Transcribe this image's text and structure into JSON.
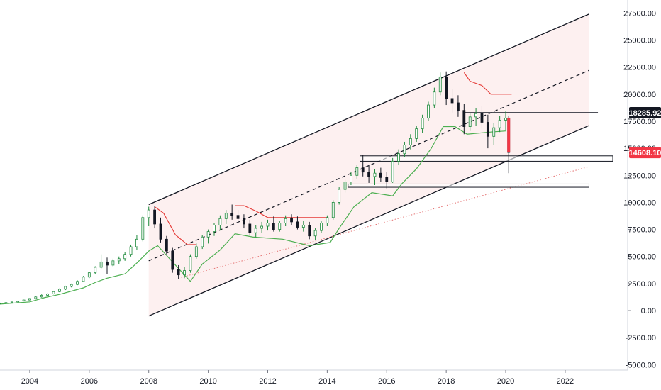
{
  "chart_data": {
    "type": "candlestick",
    "x_ticks": [
      "2004",
      "2006",
      "2008",
      "2010",
      "2012",
      "2014",
      "2016",
      "2018",
      "2020",
      "2022"
    ],
    "y_ticks": [
      "27500.00",
      "25000.00",
      "22500.00",
      "20000.00",
      "17500.00",
      "15000.00",
      "12500.00",
      "10000.00",
      "7500.00",
      "5000.00",
      "2500.00",
      "0.00",
      "-2500.00",
      "-5000.00"
    ],
    "ylim": [
      -5500,
      28700
    ],
    "xlim": [
      2003.0,
      2024.1
    ],
    "grid": false,
    "price_tags": [
      {
        "label": "18285.92",
        "value": 18285.92,
        "color": "#131722"
      },
      {
        "label": "14608.10",
        "value": 14608.1,
        "color": "#f23645"
      }
    ],
    "channel": {
      "upper": [
        [
          2008.0,
          9800
        ],
        [
          2022.8,
          27400
        ]
      ],
      "middle": [
        [
          2008.0,
          4600
        ],
        [
          2022.8,
          22200
        ]
      ],
      "lower": [
        [
          2008.0,
          -500
        ],
        [
          2022.8,
          17100
        ]
      ]
    },
    "dotted_trend": [
      [
        2009.0,
        3000
      ],
      [
        2022.8,
        13300
      ]
    ],
    "resistance_line": {
      "value": 18285.92,
      "from": 2018.6,
      "to": 2023.1
    },
    "zones": [
      {
        "from": 2015.1,
        "to": 2023.6,
        "low": 13800,
        "high": 14300
      },
      {
        "from": 2014.7,
        "to": 2022.8,
        "low": 11400,
        "high": 11700
      }
    ],
    "candles": [
      [
        2003.0,
        680,
        720,
        620,
        700
      ],
      [
        2003.2,
        700,
        760,
        680,
        740
      ],
      [
        2003.4,
        740,
        820,
        720,
        800
      ],
      [
        2003.6,
        800,
        900,
        780,
        880
      ],
      [
        2003.8,
        880,
        1000,
        860,
        980
      ],
      [
        2004.0,
        980,
        1150,
        940,
        1120
      ],
      [
        2004.2,
        1120,
        1300,
        1080,
        1260
      ],
      [
        2004.4,
        1260,
        1500,
        1200,
        1420
      ],
      [
        2004.6,
        1420,
        1600,
        1360,
        1540
      ],
      [
        2004.8,
        1540,
        1800,
        1500,
        1760
      ],
      [
        2005.0,
        1760,
        2050,
        1700,
        1980
      ],
      [
        2005.2,
        1980,
        2300,
        1900,
        2240
      ],
      [
        2005.4,
        2240,
        2500,
        2150,
        2420
      ],
      [
        2005.6,
        2420,
        2800,
        2350,
        2700
      ],
      [
        2005.8,
        2700,
        3200,
        2650,
        3100
      ],
      [
        2006.0,
        3100,
        3600,
        3000,
        3500
      ],
      [
        2006.2,
        3500,
        4100,
        3400,
        4000
      ],
      [
        2006.4,
        4000,
        5200,
        3800,
        4500
      ],
      [
        2006.6,
        4500,
        4900,
        3400,
        4200
      ],
      [
        2006.8,
        4200,
        4800,
        4000,
        4600
      ],
      [
        2007.0,
        4600,
        5000,
        4300,
        4800
      ],
      [
        2007.2,
        4800,
        5400,
        4600,
        5200
      ],
      [
        2007.4,
        5200,
        6100,
        5000,
        5900
      ],
      [
        2007.6,
        5900,
        7000,
        5600,
        6600
      ],
      [
        2007.8,
        6600,
        8800,
        6400,
        8600
      ],
      [
        2008.0,
        8600,
        9600,
        7800,
        9300
      ],
      [
        2008.2,
        9300,
        9700,
        7600,
        8000
      ],
      [
        2008.4,
        8000,
        8600,
        6300,
        6600
      ],
      [
        2008.6,
        6600,
        6900,
        5200,
        5500
      ],
      [
        2008.8,
        5500,
        5800,
        3500,
        3800
      ],
      [
        2009.0,
        3800,
        4200,
        2950,
        3300
      ],
      [
        2009.2,
        3300,
        4000,
        3000,
        3700
      ],
      [
        2009.4,
        3700,
        5200,
        3500,
        5000
      ],
      [
        2009.6,
        5000,
        6200,
        4800,
        5900
      ],
      [
        2009.8,
        5900,
        7000,
        5700,
        6800
      ],
      [
        2010.0,
        6800,
        7500,
        6200,
        7300
      ],
      [
        2010.2,
        7300,
        8100,
        6900,
        7900
      ],
      [
        2010.4,
        7900,
        8800,
        7400,
        8500
      ],
      [
        2010.6,
        8500,
        9300,
        8000,
        9000
      ],
      [
        2010.8,
        9000,
        9800,
        8400,
        8800
      ],
      [
        2011.0,
        8800,
        9300,
        8100,
        8500
      ],
      [
        2011.2,
        8500,
        8900,
        7600,
        8000
      ],
      [
        2011.4,
        8000,
        8400,
        7000,
        7200
      ],
      [
        2011.6,
        7200,
        7900,
        6800,
        7600
      ],
      [
        2011.8,
        7600,
        8200,
        7200,
        7800
      ],
      [
        2012.0,
        7800,
        8400,
        7400,
        8100
      ],
      [
        2012.2,
        8100,
        8700,
        7300,
        7500
      ],
      [
        2012.4,
        7500,
        8300,
        7300,
        8100
      ],
      [
        2012.6,
        8100,
        8800,
        7800,
        8500
      ],
      [
        2012.8,
        8500,
        8900,
        7900,
        8200
      ],
      [
        2013.0,
        8200,
        8700,
        7500,
        7700
      ],
      [
        2013.2,
        7700,
        8300,
        7300,
        7900
      ],
      [
        2013.4,
        7900,
        8200,
        6600,
        6900
      ],
      [
        2013.6,
        6900,
        7600,
        6500,
        7400
      ],
      [
        2013.8,
        7400,
        8300,
        7200,
        8100
      ],
      [
        2014.0,
        8100,
        8800,
        7800,
        8600
      ],
      [
        2014.2,
        8600,
        10200,
        8400,
        10000
      ],
      [
        2014.4,
        10000,
        11400,
        9800,
        11200
      ],
      [
        2014.6,
        11200,
        12100,
        10900,
        11900
      ],
      [
        2014.8,
        11900,
        12800,
        11600,
        12500
      ],
      [
        2015.0,
        12500,
        13500,
        12200,
        13200
      ],
      [
        2015.2,
        13200,
        14400,
        12400,
        12800
      ],
      [
        2015.4,
        12800,
        13500,
        11800,
        12400
      ],
      [
        2015.6,
        12400,
        13100,
        11600,
        12700
      ],
      [
        2015.8,
        12700,
        13200,
        11900,
        12300
      ],
      [
        2016.0,
        12300,
        12800,
        11300,
        11900
      ],
      [
        2016.2,
        11900,
        14100,
        11800,
        13800
      ],
      [
        2016.4,
        13800,
        14900,
        13500,
        14500
      ],
      [
        2016.6,
        14500,
        15600,
        14200,
        15300
      ],
      [
        2016.8,
        15300,
        16300,
        14900,
        15900
      ],
      [
        2017.0,
        15900,
        17100,
        15600,
        16800
      ],
      [
        2017.2,
        16800,
        18100,
        16400,
        17800
      ],
      [
        2017.4,
        17800,
        19300,
        17500,
        19000
      ],
      [
        2017.6,
        19000,
        20600,
        18700,
        20200
      ],
      [
        2017.8,
        20200,
        22000,
        19900,
        21600
      ],
      [
        2018.0,
        21600,
        22100,
        19000,
        19600
      ],
      [
        2018.2,
        19600,
        20500,
        18300,
        19200
      ],
      [
        2018.4,
        19200,
        19900,
        17900,
        18500
      ],
      [
        2018.6,
        18500,
        19100,
        16300,
        17000
      ],
      [
        2018.8,
        17000,
        18300,
        16600,
        17900
      ],
      [
        2019.0,
        17900,
        18700,
        17100,
        18200
      ],
      [
        2019.2,
        18200,
        18900,
        16800,
        17400
      ],
      [
        2019.4,
        17400,
        18100,
        15000,
        16100
      ],
      [
        2019.6,
        16100,
        17300,
        15300,
        16900
      ],
      [
        2019.8,
        16900,
        18000,
        16500,
        17600
      ],
      [
        2020.0,
        17600,
        18400,
        16700,
        17800
      ],
      [
        2020.1,
        17800,
        18000,
        12700,
        14608
      ]
    ],
    "supertrend_green": [
      [
        2003.0,
        600
      ],
      [
        2004.0,
        800
      ],
      [
        2004.5,
        1200
      ],
      [
        2005.0,
        1500
      ],
      [
        2005.8,
        2100
      ],
      [
        2006.2,
        2600
      ],
      [
        2006.6,
        3000
      ],
      [
        2007.2,
        3400
      ],
      [
        2007.6,
        4400
      ],
      [
        2008.0,
        5500
      ],
      [
        2008.3,
        6000
      ],
      [
        2009.4,
        2700
      ],
      [
        2009.8,
        4300
      ],
      [
        2010.4,
        5600
      ],
      [
        2010.9,
        7100
      ],
      [
        2011.5,
        6800
      ],
      [
        2012.5,
        6600
      ],
      [
        2013.4,
        6000
      ],
      [
        2014.1,
        6300
      ],
      [
        2014.4,
        7600
      ],
      [
        2014.9,
        9600
      ],
      [
        2015.5,
        10900
      ],
      [
        2016.2,
        10600
      ],
      [
        2016.5,
        11700
      ],
      [
        2017.0,
        13100
      ],
      [
        2017.5,
        15000
      ],
      [
        2017.9,
        17000
      ],
      [
        2018.3,
        17000
      ],
      [
        2018.7,
        16300
      ],
      [
        2019.5,
        16500
      ],
      [
        2020.0,
        16600
      ]
    ],
    "supertrend_red": [
      [
        2008.2,
        9600
      ],
      [
        2008.5,
        9000
      ],
      [
        2008.9,
        7000
      ],
      [
        2009.3,
        6100
      ],
      [
        2009.6,
        6100
      ],
      [
        2010.9,
        9700
      ],
      [
        2011.2,
        9700
      ],
      [
        2011.6,
        9200
      ],
      [
        2012.0,
        8600
      ],
      [
        2014.0,
        8600
      ],
      [
        2018.6,
        22000
      ],
      [
        2018.8,
        21200
      ],
      [
        2019.2,
        20800
      ],
      [
        2019.5,
        20000
      ],
      [
        2020.2,
        20000
      ]
    ],
    "colors": {
      "up": "#1e8a3c",
      "down": "#131722",
      "supertrend_up": "#4caf50",
      "supertrend_down": "#e53935",
      "channel": "#131722",
      "dotted": "#e57373",
      "fill": "#fdf0f0"
    }
  }
}
